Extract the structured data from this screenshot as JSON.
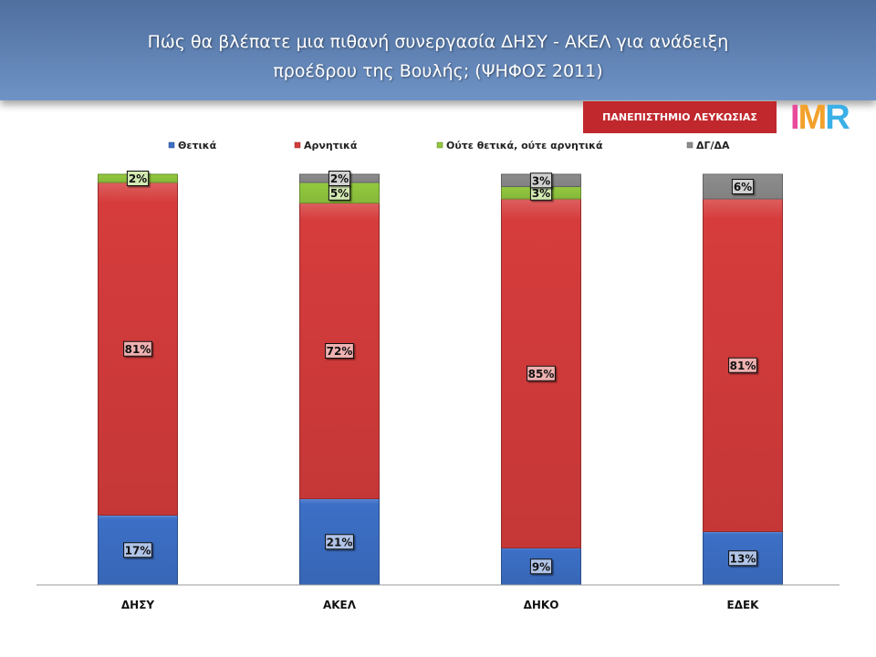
{
  "title_lines": [
    "Πώς θα βλέπατε μια πιθανή συνεργασία ΔΗΣΥ - ΑΚΕΛ για ανάδειξη",
    "προέδρου της Βουλής; (ΨΗΦΟΣ 2011)"
  ],
  "university_label": "ΠΑΝΕΠΙΣΤΗΜΙΟ ΛΕΥΚΩΣΙΑΣ",
  "logo": {
    "part1": "I",
    "part2": "M",
    "part3": "R"
  },
  "chart_data": {
    "type": "bar",
    "stacked": true,
    "percent": true,
    "legend_position": "top",
    "grid": false,
    "ylim": [
      0,
      100
    ],
    "categories": [
      "ΔΗΣΥ",
      "ΑΚΕΛ",
      "ΔΗΚΟ",
      "ΕΔΕΚ"
    ],
    "series": [
      {
        "name": "Θετικά",
        "color": "#3c6fc6",
        "values": [
          17,
          21,
          9,
          13
        ],
        "labels": [
          "17%",
          "21%",
          "9%",
          "13%"
        ]
      },
      {
        "name": "Αρνητικά",
        "color": "#d63c3c",
        "values": [
          81,
          72,
          85,
          81
        ],
        "labels": [
          "81%",
          "72%",
          "85%",
          "81%"
        ]
      },
      {
        "name": "Ούτε θετικά, ούτε αρνητικά",
        "color": "#92c83e",
        "values": [
          2,
          5,
          3,
          0
        ],
        "labels": [
          "2%",
          "5%",
          "3%",
          ""
        ]
      },
      {
        "name": "ΔΓ/ΔΑ",
        "color": "#8c8c8c",
        "values": [
          0,
          2,
          3,
          6
        ],
        "labels": [
          "",
          "2%",
          "3%",
          "6%"
        ]
      }
    ]
  }
}
